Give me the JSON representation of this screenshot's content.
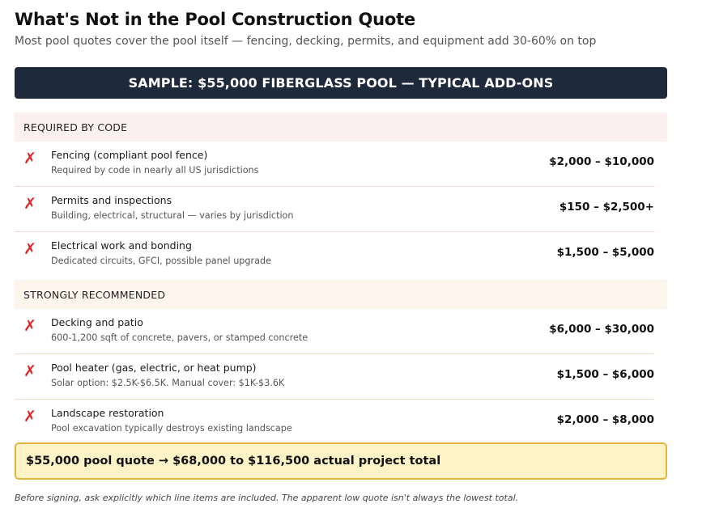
{
  "title": "What's Not in the Pool Construction Quote",
  "subtitle": "Most pool quotes cover the pool itself — fencing, decking, permits, and equipment add 30-60% on top",
  "banner": "SAMPLE: $55,000 FIBERGLASS POOL — TYPICAL ADD-ONS",
  "mark_symbol": "✗",
  "sections": [
    {
      "header": "REQUIRED BY CODE",
      "items": [
        {
          "name": "Fencing (compliant pool fence)",
          "desc": "Required by code in nearly all US jurisdictions",
          "price": "$2,000 – $10,000"
        },
        {
          "name": "Permits and inspections",
          "desc": "Building, electrical, structural — varies by jurisdiction",
          "price": "$150 – $2,500+"
        },
        {
          "name": "Electrical work and bonding",
          "desc": "Dedicated circuits, GFCI, possible panel upgrade",
          "price": "$1,500 – $5,000"
        }
      ]
    },
    {
      "header": "STRONGLY RECOMMENDED",
      "items": [
        {
          "name": "Decking and patio",
          "desc": "600-1,200 sqft of concrete, pavers, or stamped concrete",
          "price": "$6,000 – $30,000"
        },
        {
          "name": "Pool heater (gas, electric, or heat pump)",
          "desc": "Solar option: $2.5K-$6.5K. Manual cover: $1K-$3.6K",
          "price": "$1,500 – $6,000"
        },
        {
          "name": "Landscape restoration",
          "desc": "Pool excavation typically destroys existing landscape",
          "price": "$2,000 – $8,000"
        }
      ]
    }
  ],
  "total": "$55,000 pool quote → $68,000 to $116,500 actual project total",
  "footnote": "Before signing, ask explicitly which line items are included. The apparent low quote isn't always the lowest total.",
  "colors": {
    "banner_bg": "#1e293b",
    "mark": "#dc2626",
    "code_header_bg": "#fdf0f0",
    "rec_header_bg": "#fdf5ec",
    "total_bg": "#fef3c7",
    "total_border": "#e4b43c"
  }
}
